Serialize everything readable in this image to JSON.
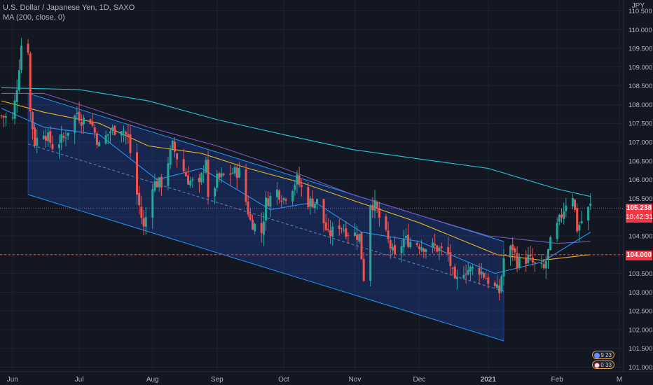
{
  "header": {
    "title": "U.S. Dollar / Japanese Yen, 1D, SAXO",
    "indicator": "MA (200, close, 0)"
  },
  "price_axis": {
    "unit": "JPY",
    "current_price": "105.238",
    "countdown": "10:42:31",
    "level": "104.000"
  },
  "badges": [
    {
      "label": "9 23"
    },
    {
      "label": "0 33"
    }
  ],
  "colors": {
    "background": "#131722",
    "up": "#26a69a",
    "down": "#ef5350",
    "ma_teal": "#26c6da",
    "ma_purple": "#7e57c2",
    "ma_yellow": "#e6b422",
    "ma_blue": "#2196f3",
    "channel": "#2962ff",
    "level_line": "#f23645"
  },
  "chart_data": {
    "type": "candlestick",
    "title": "U.S. Dollar / Japanese Yen, 1D, SAXO",
    "ylim": [
      100.8,
      111.0
    ],
    "y_ticks": [
      101.0,
      101.5,
      102.0,
      102.5,
      103.0,
      103.5,
      104.0,
      104.5,
      105.0,
      105.5,
      106.0,
      106.5,
      107.0,
      107.5,
      108.0,
      108.5,
      109.0,
      109.5,
      110.0,
      110.5
    ],
    "x_ticks": [
      {
        "label": "Jun",
        "date": "2020-06-01"
      },
      {
        "label": "Jul",
        "date": "2020-07-01"
      },
      {
        "label": "Aug",
        "date": "2020-08-03"
      },
      {
        "label": "Sep",
        "date": "2020-09-01"
      },
      {
        "label": "Oct",
        "date": "2020-10-01"
      },
      {
        "label": "Nov",
        "date": "2020-11-02"
      },
      {
        "label": "Dec",
        "date": "2020-12-01"
      },
      {
        "label": "2021",
        "date": "2021-01-01"
      },
      {
        "label": "Feb",
        "date": "2021-02-01"
      },
      {
        "label": "M",
        "date": "2021-03-01"
      }
    ],
    "x_range": [
      "2020-05-27",
      "2021-03-01"
    ],
    "close_path": [
      [
        "2020-05-27",
        107.7
      ],
      [
        "2020-06-01",
        107.6
      ],
      [
        "2020-06-03",
        108.5
      ],
      [
        "2020-06-05",
        109.6
      ],
      [
        "2020-06-08",
        109.5
      ],
      [
        "2020-06-09",
        107.8
      ],
      [
        "2020-06-11",
        107.0
      ],
      [
        "2020-06-15",
        107.3
      ],
      [
        "2020-06-19",
        106.9
      ],
      [
        "2020-06-24",
        107.1
      ],
      [
        "2020-06-30",
        107.8
      ],
      [
        "2020-07-02",
        107.6
      ],
      [
        "2020-07-06",
        107.6
      ],
      [
        "2020-07-10",
        106.9
      ],
      [
        "2020-07-15",
        107.3
      ],
      [
        "2020-07-20",
        107.4
      ],
      [
        "2020-07-23",
        107.1
      ],
      [
        "2020-07-27",
        105.6
      ],
      [
        "2020-07-30",
        104.7
      ],
      [
        "2020-08-03",
        105.9
      ],
      [
        "2020-08-07",
        105.9
      ],
      [
        "2020-08-12",
        106.9
      ],
      [
        "2020-08-14",
        106.6
      ],
      [
        "2020-08-19",
        106.0
      ],
      [
        "2020-08-24",
        105.8
      ],
      [
        "2020-08-27",
        106.6
      ],
      [
        "2020-08-28",
        105.4
      ],
      [
        "2020-09-01",
        106.0
      ],
      [
        "2020-09-08",
        106.2
      ],
      [
        "2020-09-11",
        106.2
      ],
      [
        "2020-09-16",
        104.9
      ],
      [
        "2020-09-21",
        104.6
      ],
      [
        "2020-09-23",
        105.4
      ],
      [
        "2020-09-28",
        105.7
      ],
      [
        "2020-10-01",
        105.5
      ],
      [
        "2020-10-07",
        106.0
      ],
      [
        "2020-10-12",
        105.4
      ],
      [
        "2020-10-16",
        105.4
      ],
      [
        "2020-10-21",
        104.5
      ],
      [
        "2020-10-26",
        104.8
      ],
      [
        "2020-10-30",
        104.6
      ],
      [
        "2020-11-04",
        104.5
      ],
      [
        "2020-11-06",
        103.4
      ],
      [
        "2020-11-09",
        105.4
      ],
      [
        "2020-11-11",
        105.3
      ],
      [
        "2020-11-16",
        104.5
      ],
      [
        "2020-11-20",
        103.9
      ],
      [
        "2020-11-24",
        104.4
      ],
      [
        "2020-11-30",
        104.3
      ],
      [
        "2020-12-04",
        104.2
      ],
      [
        "2020-12-08",
        104.2
      ],
      [
        "2020-12-14",
        104.0
      ],
      [
        "2020-12-17",
        103.2
      ],
      [
        "2020-12-21",
        103.6
      ],
      [
        "2020-12-28",
        103.6
      ],
      [
        "2021-01-04",
        103.1
      ],
      [
        "2021-01-06",
        103.0
      ],
      [
        "2021-01-08",
        103.9
      ],
      [
        "2021-01-12",
        104.2
      ],
      [
        "2021-01-14",
        103.8
      ],
      [
        "2021-01-19",
        103.9
      ],
      [
        "2021-01-22",
        103.7
      ],
      [
        "2021-01-26",
        103.6
      ],
      [
        "2021-01-29",
        104.3
      ],
      [
        "2021-02-02",
        104.9
      ],
      [
        "2021-02-05",
        105.4
      ],
      [
        "2021-02-08",
        105.6
      ],
      [
        "2021-02-10",
        104.7
      ],
      [
        "2021-02-12",
        104.9
      ],
      [
        "2021-02-16",
        105.3
      ]
    ],
    "moving_averages": [
      {
        "color": "#26c6da",
        "points": [
          [
            "2020-05-27",
            108.45
          ],
          [
            "2020-07-01",
            108.4
          ],
          [
            "2020-08-01",
            108.1
          ],
          [
            "2020-09-01",
            107.6
          ],
          [
            "2020-10-01",
            107.2
          ],
          [
            "2020-11-01",
            106.8
          ],
          [
            "2020-12-01",
            106.55
          ],
          [
            "2021-01-01",
            106.3
          ],
          [
            "2021-02-01",
            105.75
          ],
          [
            "2021-02-16",
            105.55
          ]
        ]
      },
      {
        "color": "#7e57c2",
        "points": [
          [
            "2020-05-27",
            108.3
          ],
          [
            "2020-06-15",
            108.3
          ],
          [
            "2020-07-01",
            108.0
          ],
          [
            "2020-08-01",
            107.4
          ],
          [
            "2020-09-01",
            106.9
          ],
          [
            "2020-10-01",
            106.3
          ],
          [
            "2020-11-01",
            105.6
          ],
          [
            "2020-12-01",
            105.05
          ],
          [
            "2021-01-01",
            104.5
          ],
          [
            "2021-02-01",
            104.3
          ],
          [
            "2021-02-16",
            104.35
          ]
        ]
      },
      {
        "color": "#e6b422",
        "points": [
          [
            "2020-05-27",
            108.1
          ],
          [
            "2020-06-15",
            107.8
          ],
          [
            "2020-07-10",
            107.5
          ],
          [
            "2020-08-01",
            106.9
          ],
          [
            "2020-08-25",
            106.7
          ],
          [
            "2020-09-15",
            106.3
          ],
          [
            "2020-10-10",
            105.9
          ],
          [
            "2020-11-01",
            105.45
          ],
          [
            "2020-12-01",
            104.85
          ],
          [
            "2021-01-05",
            104.0
          ],
          [
            "2021-01-25",
            103.85
          ],
          [
            "2021-02-16",
            104.0
          ]
        ]
      },
      {
        "color": "#2196f3",
        "points": [
          [
            "2020-05-27",
            107.9
          ],
          [
            "2020-06-15",
            107.4
          ],
          [
            "2020-07-10",
            107.2
          ],
          [
            "2020-08-05",
            106.0
          ],
          [
            "2020-08-25",
            106.3
          ],
          [
            "2020-09-25",
            105.2
          ],
          [
            "2020-10-15",
            105.4
          ],
          [
            "2020-11-05",
            104.6
          ],
          [
            "2020-12-01",
            104.35
          ],
          [
            "2021-01-04",
            103.5
          ],
          [
            "2021-01-25",
            103.8
          ],
          [
            "2021-02-16",
            104.6
          ]
        ]
      }
    ],
    "channel": {
      "upper": [
        [
          "2020-06-08",
          108.3
        ],
        [
          "2021-01-08",
          104.35
        ]
      ],
      "lower": [
        [
          "2020-06-08",
          105.6
        ],
        [
          "2021-01-08",
          101.7
        ]
      ]
    },
    "price_line": 105.238,
    "level_line": 104.0
  }
}
